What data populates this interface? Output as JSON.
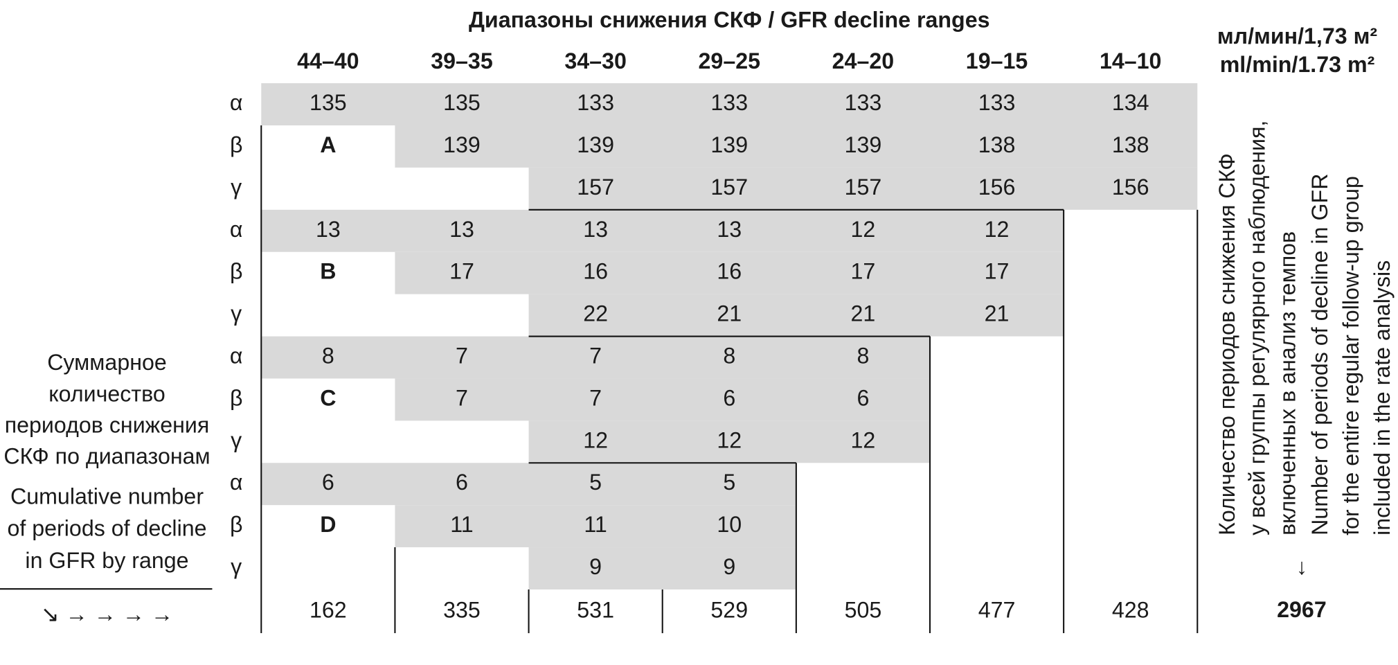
{
  "header": {
    "title": "Диапазоны снижения СКФ / GFR decline ranges",
    "units": [
      "мл/мин/1,73 м²",
      "ml/min/1.73 m²"
    ]
  },
  "columns": [
    "44–40",
    "39–35",
    "34–30",
    "29–25",
    "24–20",
    "19–15",
    "14–10"
  ],
  "groups": [
    {
      "label": "A",
      "rows": [
        {
          "greek": "α",
          "values": [
            135,
            135,
            133,
            133,
            133,
            133,
            134
          ]
        },
        {
          "greek": "β",
          "values": [
            null,
            139,
            139,
            139,
            139,
            138,
            138
          ]
        },
        {
          "greek": "γ",
          "values": [
            null,
            null,
            157,
            157,
            157,
            156,
            156
          ]
        }
      ]
    },
    {
      "label": "B",
      "rows": [
        {
          "greek": "α",
          "values": [
            13,
            13,
            13,
            13,
            12,
            12,
            null
          ]
        },
        {
          "greek": "β",
          "values": [
            null,
            17,
            16,
            16,
            17,
            17,
            null
          ]
        },
        {
          "greek": "γ",
          "values": [
            null,
            null,
            22,
            21,
            21,
            21,
            null
          ]
        }
      ]
    },
    {
      "label": "C",
      "rows": [
        {
          "greek": "α",
          "values": [
            8,
            7,
            7,
            8,
            8,
            null,
            null
          ]
        },
        {
          "greek": "β",
          "values": [
            null,
            7,
            7,
            6,
            6,
            null,
            null
          ]
        },
        {
          "greek": "γ",
          "values": [
            null,
            null,
            12,
            12,
            12,
            null,
            null
          ]
        }
      ]
    },
    {
      "label": "D",
      "rows": [
        {
          "greek": "α",
          "values": [
            6,
            6,
            5,
            5,
            null,
            null,
            null
          ]
        },
        {
          "greek": "β",
          "values": [
            null,
            11,
            11,
            10,
            null,
            null,
            null
          ]
        },
        {
          "greek": "γ",
          "values": [
            null,
            null,
            9,
            9,
            null,
            null,
            null
          ]
        }
      ]
    }
  ],
  "totals": [
    162,
    335,
    531,
    529,
    505,
    477,
    428
  ],
  "left_caption": {
    "ru": [
      "Суммарное",
      "количество",
      "периодов снижения",
      "СКФ по диапазонам"
    ],
    "en": [
      "Cumulative number",
      "of periods of decline",
      "in GFR by range"
    ]
  },
  "arrows": "↘ → → → →",
  "right_caption": {
    "ru": [
      "Количество периодов снижения СКФ",
      "у всей группы регулярного наблюдения,",
      "включенных в анализ темпов"
    ],
    "en": [
      "Number of periods of decline in GFR",
      "for the entire regular follow-up group",
      "included in the rate analysis"
    ]
  },
  "down_arrow": "↓",
  "grand_total": 2967
}
